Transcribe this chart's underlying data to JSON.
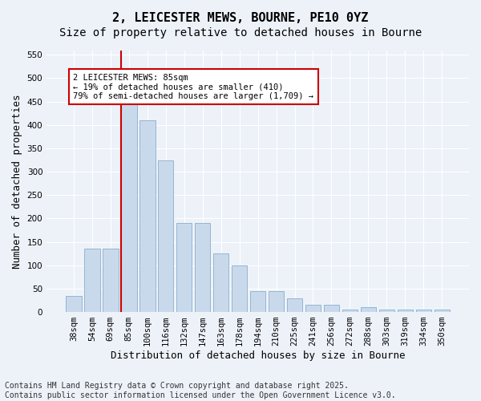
{
  "title1": "2, LEICESTER MEWS, BOURNE, PE10 0YZ",
  "title2": "Size of property relative to detached houses in Bourne",
  "xlabel": "Distribution of detached houses by size in Bourne",
  "ylabel": "Number of detached properties",
  "categories": [
    "38sqm",
    "54sqm",
    "69sqm",
    "85sqm",
    "100sqm",
    "116sqm",
    "132sqm",
    "147sqm",
    "163sqm",
    "178sqm",
    "194sqm",
    "210sqm",
    "225sqm",
    "241sqm",
    "256sqm",
    "272sqm",
    "288sqm",
    "303sqm",
    "319sqm",
    "334sqm",
    "350sqm"
  ],
  "values": [
    35,
    135,
    135,
    450,
    410,
    325,
    190,
    190,
    125,
    100,
    45,
    45,
    30,
    15,
    15,
    5,
    10,
    5,
    5,
    5,
    5
  ],
  "bar_color": "#c9d9ec",
  "bar_edge_color": "#8aadc8",
  "vline_index": 3,
  "vline_color": "#cc0000",
  "annotation_text": "2 LEICESTER MEWS: 85sqm\n← 19% of detached houses are smaller (410)\n79% of semi-detached houses are larger (1,709) →",
  "annotation_box_facecolor": "#ffffff",
  "annotation_box_edgecolor": "#cc0000",
  "ylim_max": 560,
  "yticks": [
    0,
    50,
    100,
    150,
    200,
    250,
    300,
    350,
    400,
    450,
    500,
    550
  ],
  "footer": "Contains HM Land Registry data © Crown copyright and database right 2025.\nContains public sector information licensed under the Open Government Licence v3.0.",
  "bg_color": "#edf2f9",
  "grid_color": "#ffffff",
  "title_fontsize": 11,
  "subtitle_fontsize": 10,
  "axis_label_fontsize": 9,
  "tick_fontsize": 7.5,
  "footer_fontsize": 7
}
